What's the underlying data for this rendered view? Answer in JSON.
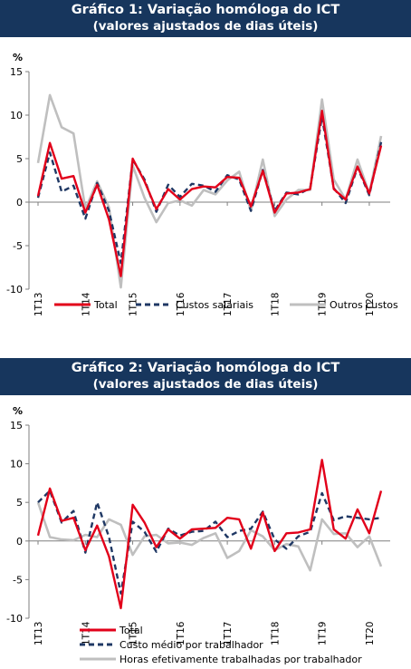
{
  "chart_data": [
    {
      "type": "line",
      "title": "Gráfico 1: Variação homóloga do ICT",
      "subtitle": "(valores ajustados de dias úteis)",
      "ylabel": "%",
      "ylim": [
        -10,
        15
      ],
      "yticks": [
        -10,
        -5,
        0,
        5,
        10,
        15
      ],
      "x_tick_labels": [
        "1T13",
        "1T14",
        "1T15",
        "1T16",
        "1T17",
        "1T18",
        "1T19",
        "1T20"
      ],
      "x_tick_index": [
        0,
        4,
        8,
        12,
        16,
        20,
        24,
        28
      ],
      "legend_position": "bottom",
      "grid": false,
      "series": [
        {
          "name": "Total",
          "color": "#e2001a",
          "style": "solid",
          "values": [
            0.7,
            6.8,
            2.7,
            3.0,
            -1.2,
            2.0,
            -2.0,
            -8.5,
            5.0,
            2.4,
            -0.8,
            1.5,
            0.3,
            1.5,
            1.8,
            1.7,
            2.9,
            2.8,
            -0.5,
            3.6,
            -1.2,
            1.0,
            1.1,
            1.5,
            10.5,
            1.5,
            0.3,
            4.1,
            1.0,
            6.5
          ]
        },
        {
          "name": "Custos salariais",
          "color": "#1f3864",
          "style": "dashed",
          "values": [
            0.5,
            5.7,
            1.2,
            1.9,
            -1.9,
            2.2,
            -1.0,
            -7.0,
            4.9,
            2.6,
            -1.1,
            2.0,
            0.6,
            2.1,
            1.9,
            1.2,
            3.1,
            2.6,
            -1.0,
            3.7,
            -1.0,
            1.1,
            0.9,
            1.6,
            9.8,
            1.6,
            -0.1,
            4.0,
            0.8,
            6.9
          ]
        },
        {
          "name": "Outros custos",
          "color": "#bfbfbf",
          "style": "solid",
          "values": [
            4.5,
            12.3,
            8.6,
            7.9,
            -0.8,
            2.4,
            -0.6,
            -9.8,
            4.2,
            0.5,
            -2.3,
            -0.1,
            0.2,
            -0.4,
            1.4,
            0.9,
            2.5,
            3.5,
            -1.0,
            4.9,
            -1.6,
            0.3,
            1.4,
            1.4,
            11.8,
            2.6,
            0.3,
            4.9,
            1.0,
            7.6
          ]
        }
      ]
    },
    {
      "type": "line",
      "title": "Gráfico 2: Variação homóloga do ICT",
      "subtitle": "(valores ajustados de dias úteis)",
      "ylabel": "%",
      "ylim": [
        -10,
        15
      ],
      "yticks": [
        -10,
        -5,
        0,
        5,
        10,
        15
      ],
      "x_tick_labels": [
        "1T13",
        "1T14",
        "1T15",
        "1T16",
        "1T17",
        "1T18",
        "1T19",
        "1T20"
      ],
      "x_tick_index": [
        0,
        4,
        8,
        12,
        16,
        20,
        24,
        28
      ],
      "legend_position": "bottom",
      "grid": false,
      "series": [
        {
          "name": "Total",
          "color": "#e2001a",
          "style": "solid",
          "values": [
            0.7,
            6.8,
            2.6,
            3.0,
            -1.2,
            2.0,
            -2.0,
            -8.7,
            4.7,
            2.4,
            -0.8,
            1.5,
            0.3,
            1.5,
            1.6,
            1.7,
            3.0,
            2.8,
            -1.0,
            3.7,
            -1.3,
            1.0,
            1.1,
            1.5,
            10.5,
            1.5,
            0.3,
            4.1,
            1.0,
            6.5
          ]
        },
        {
          "name": "Custo médio por trabalhador",
          "color": "#1f3864",
          "style": "dashed",
          "values": [
            5.0,
            6.5,
            2.4,
            3.9,
            -1.5,
            5.0,
            0.5,
            -6.8,
            2.5,
            1.2,
            -1.4,
            1.6,
            0.7,
            1.2,
            1.3,
            2.5,
            0.5,
            1.3,
            1.6,
            3.8,
            0.2,
            -1.0,
            0.6,
            1.2,
            6.2,
            2.7,
            3.2,
            3.0,
            2.8,
            3.0
          ]
        },
        {
          "name": "Horas efetivamente trabalhadas por trabalhador",
          "color": "#bfbfbf",
          "style": "solid",
          "values": [
            5.0,
            0.5,
            0.2,
            0.1,
            0.8,
            0.5,
            2.8,
            2.1,
            -1.8,
            0.6,
            0.8,
            -0.3,
            -0.2,
            -0.5,
            0.4,
            1.0,
            -2.2,
            -1.3,
            1.4,
            0.6,
            -1.2,
            -0.4,
            -0.7,
            -3.8,
            2.8,
            0.9,
            1.0,
            -0.8,
            0.6,
            -3.3
          ]
        }
      ]
    }
  ]
}
